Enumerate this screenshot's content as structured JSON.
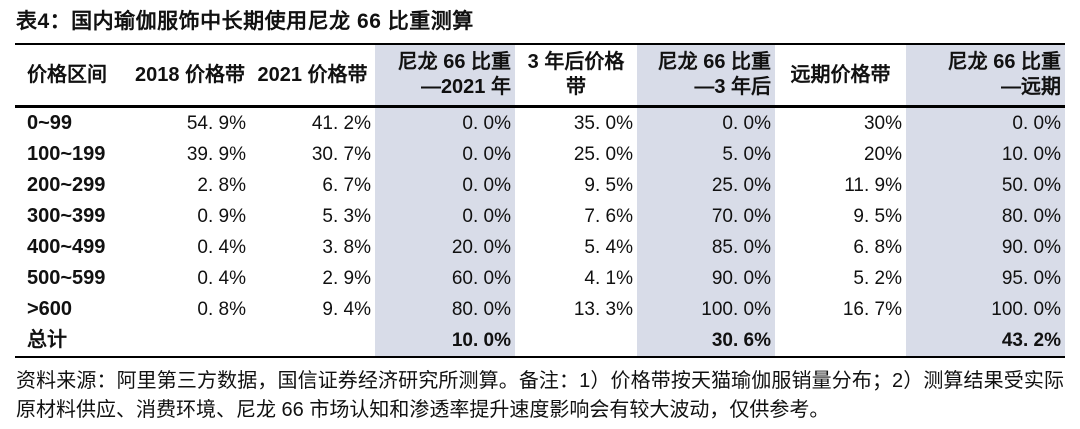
{
  "title": "表4：国内瑜伽服饰中长期使用尼龙 66 比重测算",
  "colors": {
    "highlight_bg": "#d8dce8",
    "text": "#111111",
    "rule": "#000000"
  },
  "table": {
    "columns": [
      {
        "id": "price-range",
        "lines": [
          "价格区间"
        ],
        "shaded": false
      },
      {
        "id": "band-2018",
        "lines": [
          "2018 价格带"
        ],
        "shaded": false
      },
      {
        "id": "band-2021",
        "lines": [
          "2021 价格带"
        ],
        "shaded": false
      },
      {
        "id": "nylon66-2021",
        "lines": [
          "尼龙 66 比重",
          "—2021 年"
        ],
        "shaded": true
      },
      {
        "id": "band-3yr",
        "lines": [
          "3 年后价格带"
        ],
        "shaded": false
      },
      {
        "id": "nylon66-3yr",
        "lines": [
          "尼龙 66 比重",
          "—3 年后"
        ],
        "shaded": true
      },
      {
        "id": "band-longterm",
        "lines": [
          "远期价格带"
        ],
        "shaded": false
      },
      {
        "id": "nylon66-longterm",
        "lines": [
          "尼龙 66 比重",
          "—远期"
        ],
        "shaded": true
      }
    ],
    "rows": [
      {
        "label": "0~99",
        "values": [
          "54. 9%",
          "41. 2%",
          "0. 0%",
          "35. 0%",
          "0. 0%",
          "30%",
          "0. 0%"
        ]
      },
      {
        "label": "100~199",
        "values": [
          "39. 9%",
          "30. 7%",
          "0. 0%",
          "25. 0%",
          "5. 0%",
          "20%",
          "10. 0%"
        ]
      },
      {
        "label": "200~299",
        "values": [
          "2. 8%",
          "6. 7%",
          "0. 0%",
          "9. 5%",
          "25. 0%",
          "11. 9%",
          "50. 0%"
        ]
      },
      {
        "label": "300~399",
        "values": [
          "0. 9%",
          "5. 3%",
          "0. 0%",
          "7. 6%",
          "70. 0%",
          "9. 5%",
          "80. 0%"
        ]
      },
      {
        "label": "400~499",
        "values": [
          "0. 4%",
          "3. 8%",
          "20. 0%",
          "5. 4%",
          "85. 0%",
          "6. 8%",
          "90. 0%"
        ]
      },
      {
        "label": "500~599",
        "values": [
          "0. 4%",
          "2. 9%",
          "60. 0%",
          "4. 1%",
          "90. 0%",
          "5. 2%",
          "95. 0%"
        ]
      },
      {
        "label": ">600",
        "values": [
          "0. 8%",
          "9. 4%",
          "80. 0%",
          "13. 3%",
          "100. 0%",
          "16. 7%",
          "100. 0%"
        ]
      },
      {
        "label": "总计",
        "values": [
          "",
          "",
          "10. 0%",
          "",
          "30. 6%",
          "",
          "43. 2%"
        ],
        "is_total": true
      }
    ]
  },
  "footer": {
    "source_note": "资料来源：阿里第三方数据，国信证券经济研究所测算。备注：1）价格带按天猫瑜伽服销量分布；2）测算结果受实际原材料供应、消费环境、尼龙 66 市场认知和渗透率提升速度影响会有较大波动，仅供参考。"
  }
}
